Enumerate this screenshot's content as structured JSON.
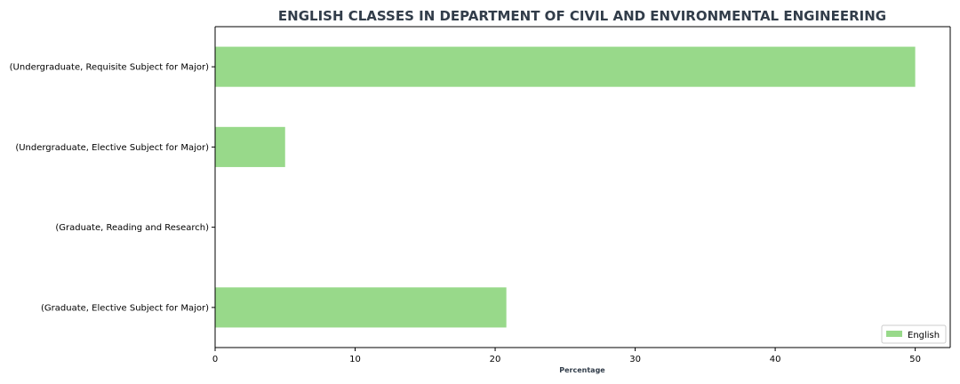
{
  "chart_data": {
    "type": "bar",
    "orientation": "horizontal",
    "title": "ENGLISH CLASSES IN DEPARTMENT OF CIVIL AND ENVIRONMENTAL ENGINEERING",
    "xlabel": "Percentage",
    "ylabel": "",
    "categories": [
      "(Undergraduate, Requisite Subject for Major)",
      "(Undergraduate, Elective Subject for Major)",
      "(Graduate, Reading and Research)",
      "(Graduate, Elective Subject for Major)"
    ],
    "series": [
      {
        "name": "English",
        "values": [
          50,
          5,
          0,
          20.8
        ],
        "color": "#98d98a"
      }
    ],
    "xlim": [
      0,
      52.5
    ],
    "xticks": [
      0,
      10,
      20,
      30,
      40,
      50
    ],
    "xtick_labels": [
      "0",
      "10",
      "20",
      "30",
      "40",
      "50"
    ],
    "grid": false,
    "legend_position": "bottom-right",
    "title_color": "#323d4a"
  }
}
